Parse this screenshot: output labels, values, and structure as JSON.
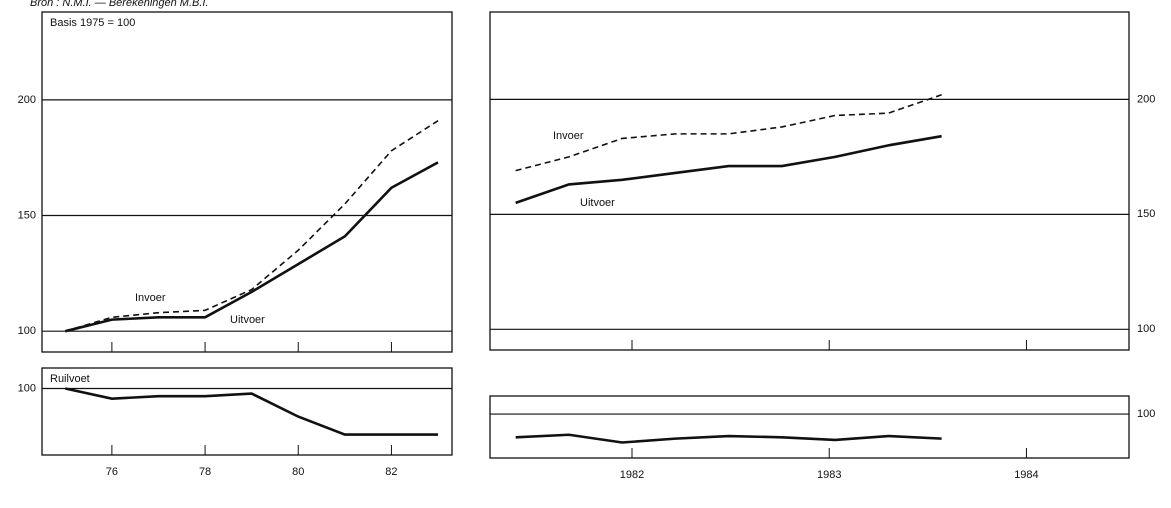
{
  "source": "Bron : N.M.I. — Berekeningen M.B.I.",
  "chart_data": [
    {
      "type": "line",
      "title": "Basis 1975 = 100",
      "x": [
        1975,
        1976,
        1977,
        1978,
        1979,
        1980,
        1981,
        1982,
        1983
      ],
      "xlim": [
        1974.5,
        1983.3
      ],
      "ylim": [
        91,
        238
      ],
      "yticks": [
        100,
        150,
        200
      ],
      "grid": true,
      "series": [
        {
          "name": "Invoer",
          "color": "#111111",
          "line_style": "dashed",
          "values": [
            100,
            106,
            108,
            109,
            118,
            135,
            155,
            178,
            191
          ]
        },
        {
          "name": "Uitvoer",
          "color": "#111111",
          "line_style": "solid",
          "values": [
            100,
            105,
            106,
            106,
            117,
            129,
            141,
            162,
            173
          ]
        }
      ]
    },
    {
      "type": "line",
      "x": [
        1981.91,
        1982.18,
        1982.45,
        1982.72,
        1982.99,
        1983.26,
        1983.53,
        1983.8,
        1984.07
      ],
      "xlim": [
        1981.78,
        1985.02
      ],
      "ylim": [
        91,
        238
      ],
      "yticks": [
        100,
        150,
        200
      ],
      "grid": true,
      "series": [
        {
          "name": "Invoer",
          "color": "#111111",
          "line_style": "dashed",
          "values": [
            169,
            175,
            183,
            185,
            185,
            188,
            193,
            194,
            202
          ]
        },
        {
          "name": "Uitvoer",
          "color": "#111111",
          "line_style": "solid",
          "values": [
            155,
            163,
            165,
            168,
            171,
            171,
            175,
            180,
            184
          ]
        }
      ]
    },
    {
      "type": "line",
      "title": "Ruilvoet",
      "x": [
        1975,
        1976,
        1977,
        1978,
        1979,
        1980,
        1981,
        1982,
        1983
      ],
      "xlim": [
        1974.5,
        1983.3
      ],
      "xticks": [
        {
          "value": 1976,
          "label": "76"
        },
        {
          "value": 1978,
          "label": "78"
        },
        {
          "value": 1980,
          "label": "80"
        },
        {
          "value": 1982,
          "label": "82"
        }
      ],
      "ylim": [
        87,
        104
      ],
      "yticks": [
        100
      ],
      "grid": true,
      "color": "#111111",
      "values": [
        100,
        98,
        98.5,
        98.5,
        99,
        94.5,
        91,
        91,
        91
      ]
    },
    {
      "type": "line",
      "x": [
        1981.91,
        1982.18,
        1982.45,
        1982.72,
        1982.99,
        1983.26,
        1983.53,
        1983.8,
        1984.07
      ],
      "xlim": [
        1981.78,
        1985.02
      ],
      "xticks": [
        {
          "value": 1982.5,
          "label": "1982"
        },
        {
          "value": 1983.5,
          "label": "1983"
        },
        {
          "value": 1984.5,
          "label": "1984"
        }
      ],
      "ylim": [
        83,
        107
      ],
      "yticks": [
        100
      ],
      "grid": true,
      "color": "#111111",
      "values": [
        91,
        92,
        89,
        90.5,
        91.5,
        91,
        90,
        91.5,
        90.5
      ]
    }
  ]
}
